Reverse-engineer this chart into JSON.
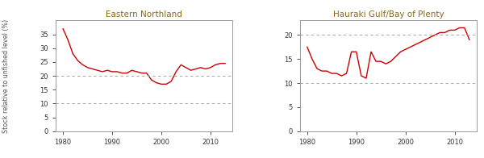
{
  "title1": "Eastern Northland",
  "title2": "Hauraki Gulf/Bay of Plenty",
  "ylabel": "Stock relative to unfished level (%)",
  "hlines": [
    10,
    20
  ],
  "en_years": [
    1980,
    1981,
    1982,
    1983,
    1984,
    1985,
    1986,
    1987,
    1988,
    1989,
    1990,
    1991,
    1992,
    1993,
    1994,
    1995,
    1996,
    1997,
    1998,
    1999,
    2000,
    2001,
    2002,
    2003,
    2004,
    2005,
    2006,
    2007,
    2008,
    2009,
    2010,
    2011,
    2012,
    2013
  ],
  "en_values": [
    37.0,
    33.0,
    28.0,
    25.5,
    24.0,
    23.0,
    22.5,
    22.0,
    21.5,
    22.0,
    21.5,
    21.5,
    21.0,
    21.0,
    22.0,
    21.5,
    21.0,
    21.0,
    18.5,
    17.5,
    17.0,
    17.0,
    18.0,
    21.5,
    24.0,
    23.0,
    22.0,
    22.5,
    23.0,
    22.5,
    23.0,
    24.0,
    24.5,
    24.5
  ],
  "hg_years": [
    1980,
    1981,
    1982,
    1983,
    1984,
    1985,
    1986,
    1987,
    1988,
    1989,
    1990,
    1991,
    1992,
    1993,
    1994,
    1995,
    1996,
    1997,
    1998,
    1999,
    2000,
    2001,
    2002,
    2003,
    2004,
    2005,
    2006,
    2007,
    2008,
    2009,
    2010,
    2011,
    2012,
    2013
  ],
  "hg_values": [
    17.5,
    15.0,
    13.0,
    12.5,
    12.5,
    12.0,
    12.0,
    11.5,
    12.0,
    16.5,
    16.5,
    11.5,
    11.0,
    16.5,
    14.5,
    14.5,
    14.0,
    14.5,
    15.5,
    16.5,
    17.0,
    17.5,
    18.0,
    18.5,
    19.0,
    19.5,
    20.0,
    20.5,
    20.5,
    21.0,
    21.0,
    21.5,
    21.5,
    19.0
  ],
  "line_color": "#cc0000",
  "hline_color": "#aaaaaa",
  "title_color": "#8B6914",
  "ylabel_color": "#555555",
  "tick_color": "#333333",
  "bg_color": "#ffffff",
  "plot_bg": "#ffffff",
  "border_color": "#999999",
  "en_xlim": [
    1978.5,
    2014.5
  ],
  "hg_xlim": [
    1978.5,
    2014.5
  ],
  "en_ylim": [
    0,
    40
  ],
  "hg_ylim": [
    0,
    23
  ],
  "en_yticks": [
    0,
    5,
    10,
    15,
    20,
    25,
    30,
    35
  ],
  "hg_yticks": [
    0,
    5,
    10,
    15,
    20
  ],
  "xticks": [
    1980,
    1990,
    2000,
    2010
  ]
}
